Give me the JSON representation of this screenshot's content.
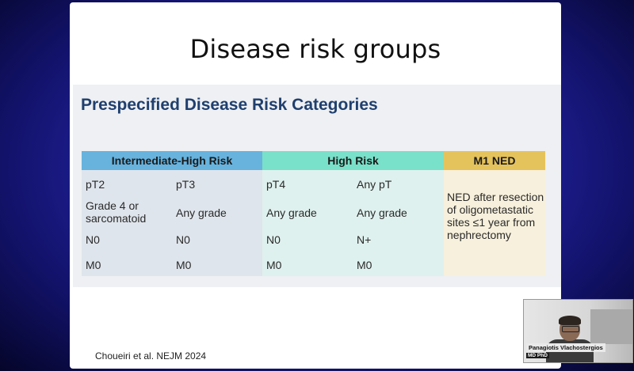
{
  "slide": {
    "title": "Disease risk groups",
    "panel_title": "Prespecified Disease Risk Categories",
    "citation": "Choueiri et al. NEJM 2024"
  },
  "table": {
    "groups": [
      {
        "label": "Intermediate-High Risk",
        "color": "#67b3de"
      },
      {
        "label": "High Risk",
        "color": "#79e0c9"
      },
      {
        "label": "M1 NED",
        "color": "#e5c35c"
      }
    ],
    "intermediate_high": [
      [
        "pT2",
        "pT3"
      ],
      [
        "Grade 4 or sarcomatoid",
        "Any grade"
      ],
      [
        "N0",
        "N0"
      ],
      [
        "M0",
        "M0"
      ]
    ],
    "high": [
      [
        "pT4",
        "Any pT"
      ],
      [
        "Any grade",
        "Any grade"
      ],
      [
        "N0",
        "N+"
      ],
      [
        "M0",
        "M0"
      ]
    ],
    "m1_ned": "NED after resection of oligometastatic sites ≤1 year from nephrectomy"
  },
  "video": {
    "name": "Panagiotis Vlachostergios",
    "credentials": "MD PhD"
  }
}
